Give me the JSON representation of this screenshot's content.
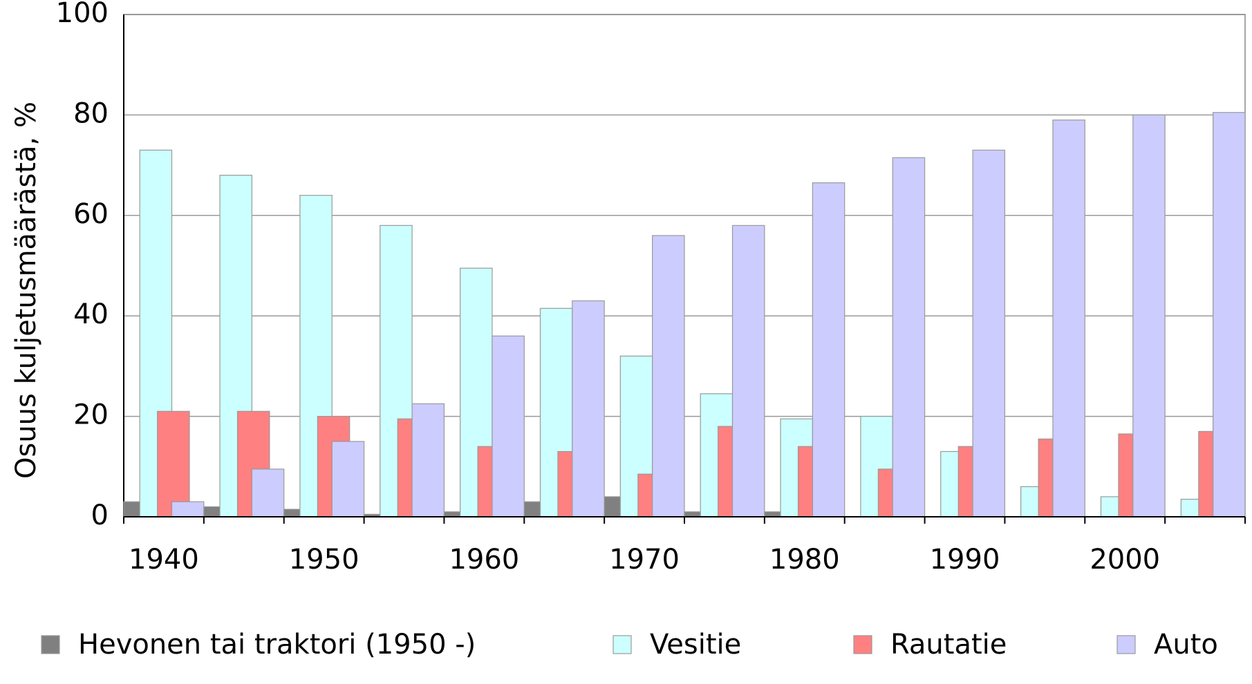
{
  "chart_data": {
    "type": "bar",
    "y_label": "Osuus kuljetusmäärästä, %",
    "categories": [
      "1940",
      null,
      "1950",
      null,
      "1960",
      null,
      "1970",
      null,
      "1980",
      null,
      "1990",
      null,
      "2000",
      null
    ],
    "series": [
      {
        "name": "Hevonen tai traktori (1950 -)",
        "color": "#808080",
        "values": [
          3,
          2,
          1.5,
          0.5,
          1,
          3,
          4,
          1,
          1,
          0,
          0,
          0,
          0,
          0
        ]
      },
      {
        "name": "Vesitie",
        "color": "#ccffff",
        "values": [
          73,
          68,
          64,
          58,
          49.5,
          41.5,
          32,
          24.5,
          19.5,
          20,
          13,
          6,
          4,
          3.5
        ]
      },
      {
        "name": "Rautatie",
        "color": "#ff8080",
        "values": [
          21,
          21,
          20,
          19.5,
          14,
          13,
          8.5,
          18,
          14,
          9.5,
          14,
          15.5,
          16.5,
          17
        ]
      },
      {
        "name": "Auto",
        "color": "#ccccff",
        "values": [
          3,
          9.5,
          15,
          22.5,
          36,
          43,
          56,
          58,
          66.5,
          71.5,
          73,
          79,
          80,
          80.5
        ]
      }
    ],
    "ylim": [
      0,
      100
    ],
    "yticks": [
      0,
      20,
      40,
      60,
      80,
      100
    ],
    "grid": true
  }
}
